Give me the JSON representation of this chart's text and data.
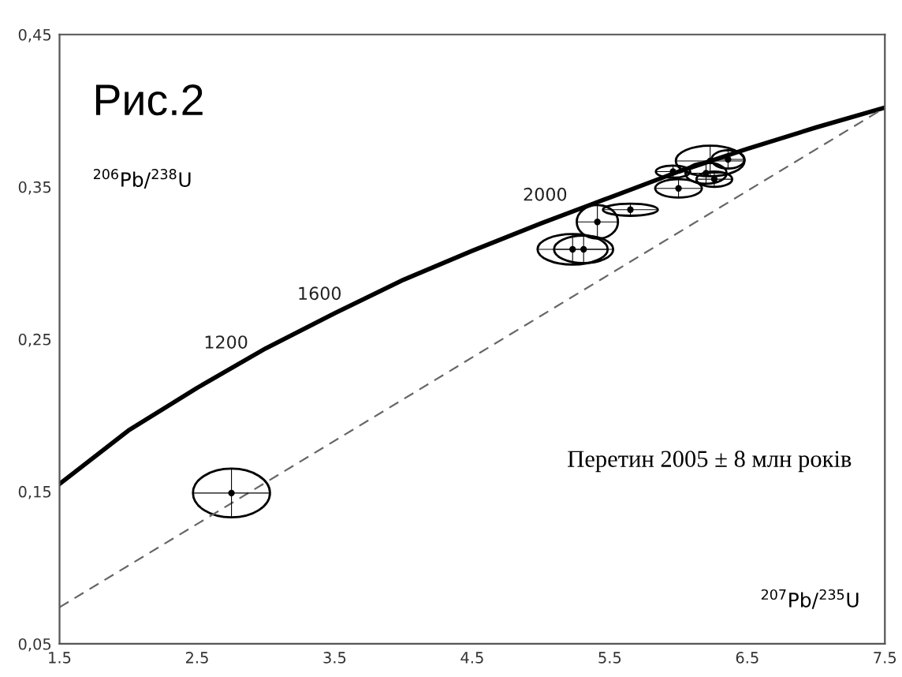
{
  "chart_data": {
    "type": "line",
    "title": "Рис.2",
    "xlabel": "$^{207}$Pb/$^{235}$U",
    "ylabel": "$^{206}$Pb/$^{238}$U",
    "xlim": [
      1.5,
      7.5
    ],
    "ylim": [
      0.05,
      0.45
    ],
    "xticks": [
      1.5,
      2.5,
      3.5,
      4.5,
      5.5,
      6.5,
      7.5
    ],
    "yticks": [
      {
        "value": 0.05,
        "label": "0,05"
      },
      {
        "value": 0.15,
        "label": "0,15"
      },
      {
        "value": 0.25,
        "label": "0,25"
      },
      {
        "value": 0.35,
        "label": "0,35"
      },
      {
        "value": 0.45,
        "label": "0,45"
      }
    ],
    "grid": false,
    "legend": false,
    "series": [
      {
        "type": "line",
        "color": "#000000",
        "line_style": "solid",
        "x": [
          1.5,
          2.0,
          2.5,
          3.0,
          3.5,
          4.0,
          4.5,
          5.0,
          5.5,
          6.0,
          6.5,
          7.0,
          7.5
        ],
        "values": [
          0.155,
          0.19,
          0.218,
          0.244,
          0.267,
          0.289,
          0.308,
          0.326,
          0.343,
          0.36,
          0.375,
          0.389,
          0.402
        ]
      },
      {
        "type": "line",
        "color": "#666666",
        "line_style": "dashed",
        "x": [
          1.5,
          7.5
        ],
        "values": [
          0.074,
          0.402
        ]
      },
      {
        "type": "scatter",
        "color": "#000000",
        "marker": "circle",
        "x": [
          2.75,
          5.23,
          5.31,
          5.41,
          5.65,
          6.23,
          5.96,
          6.0,
          6.2,
          6.36,
          6.26
        ],
        "values": [
          0.149,
          0.309,
          0.309,
          0.327,
          0.335,
          0.367,
          0.36,
          0.349,
          0.359,
          0.368,
          0.355
        ],
        "xerrors": [
          0.28,
          0.255,
          0.215,
          0.15,
          0.2,
          0.25,
          0.125,
          0.17,
          0.15,
          0.12,
          0.13
        ],
        "errors": [
          0.016,
          0.01,
          0.009,
          0.011,
          0.004,
          0.01,
          0.004,
          0.006,
          0.007,
          0.006,
          0.005
        ]
      }
    ],
    "annotations": [
      {
        "text": "1200",
        "x": 2.71,
        "y": 0.23
      },
      {
        "text": "1600",
        "x": 3.39,
        "y": 0.262
      },
      {
        "text": "2000",
        "x": 5.03,
        "y": 0.327
      },
      "Перетин 2005 ± 8 млн років"
    ]
  }
}
